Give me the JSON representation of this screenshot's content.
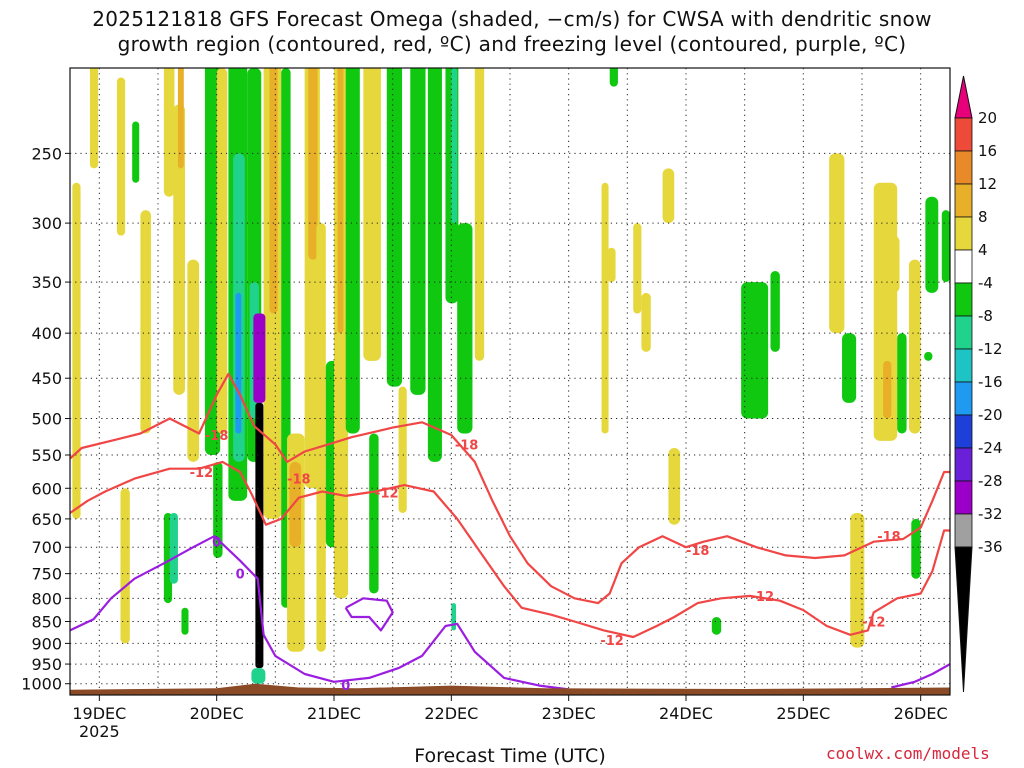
{
  "title": {
    "line1": "2025121818 GFS Forecast Omega (shaded, −cm/s) for CWSA with dendritic snow",
    "line2": "growth region (contoured, red, ºC) and freezing level (contoured, purple, ºC)"
  },
  "xlabel": "Forecast Time (UTC)",
  "credit": "coolwx.com/models",
  "chart_data": {
    "type": "heatmap",
    "title": "2025121818 GFS Forecast Omega (shaded, −cm/s) for CWSA with dendritic snow growth region (contoured, red, ºC) and freezing level (contoured, purple, ºC)",
    "xlabel": "Forecast Time (UTC)",
    "ylabel": "",
    "x_ticks": [
      "19DEC",
      "20DEC",
      "21DEC",
      "22DEC",
      "23DEC",
      "24DEC",
      "25DEC",
      "26DEC"
    ],
    "x_tick_sublabel": "2025",
    "x_range_days": [
      18.75,
      26.25
    ],
    "y_ticks": [
      250,
      300,
      350,
      400,
      450,
      500,
      550,
      600,
      650,
      700,
      750,
      800,
      850,
      900,
      950,
      1000
    ],
    "y_range_hpa": [
      200,
      1030
    ],
    "colorbar": {
      "levels": [
        -36,
        -32,
        -28,
        -24,
        -20,
        -16,
        -12,
        -8,
        -4,
        4,
        8,
        12,
        16,
        20
      ],
      "colors": [
        "#000000",
        "#a0a0a0",
        "#9a00c8",
        "#6a1fd8",
        "#1e3fd8",
        "#1e9bf0",
        "#1ec3c3",
        "#20d28c",
        "#10c810",
        "#ffffff",
        "#e6d83c",
        "#e8b028",
        "#e88a28",
        "#ee4a3a",
        "#e8007a"
      ]
    },
    "grid": true,
    "contours": [
      {
        "name": "dendritic snow growth region",
        "color": "#f04646",
        "values": [
          -12,
          -18
        ]
      },
      {
        "name": "freezing level",
        "color": "#9b1ee0",
        "values": [
          0
        ]
      }
    ],
    "contour_labels": [
      {
        "text": "-18",
        "color": "#f04646",
        "x": 20.0,
        "p": 522
      },
      {
        "text": "-12",
        "color": "#f04646",
        "x": 19.87,
        "p": 575
      },
      {
        "text": "-18",
        "color": "#f04646",
        "x": 20.7,
        "p": 585
      },
      {
        "text": "-12",
        "color": "#f04646",
        "x": 21.45,
        "p": 607
      },
      {
        "text": "-18",
        "color": "#f04646",
        "x": 22.13,
        "p": 535
      },
      {
        "text": "-18",
        "color": "#f04646",
        "x": 24.1,
        "p": 705
      },
      {
        "text": "-12",
        "color": "#f04646",
        "x": 24.65,
        "p": 795
      },
      {
        "text": "-12",
        "color": "#f04646",
        "x": 23.37,
        "p": 892
      },
      {
        "text": "-18",
        "color": "#f04646",
        "x": 25.73,
        "p": 680
      },
      {
        "text": "-12",
        "color": "#f04646",
        "x": 25.6,
        "p": 850
      },
      {
        "text": "0",
        "color": "#9b1ee0",
        "x": 20.0,
        "p": 690
      },
      {
        "text": "0",
        "color": "#9b1ee0",
        "x": 20.2,
        "p": 750
      },
      {
        "text": "0",
        "color": "#9b1ee0",
        "x": 21.1,
        "p": 1003
      }
    ]
  }
}
